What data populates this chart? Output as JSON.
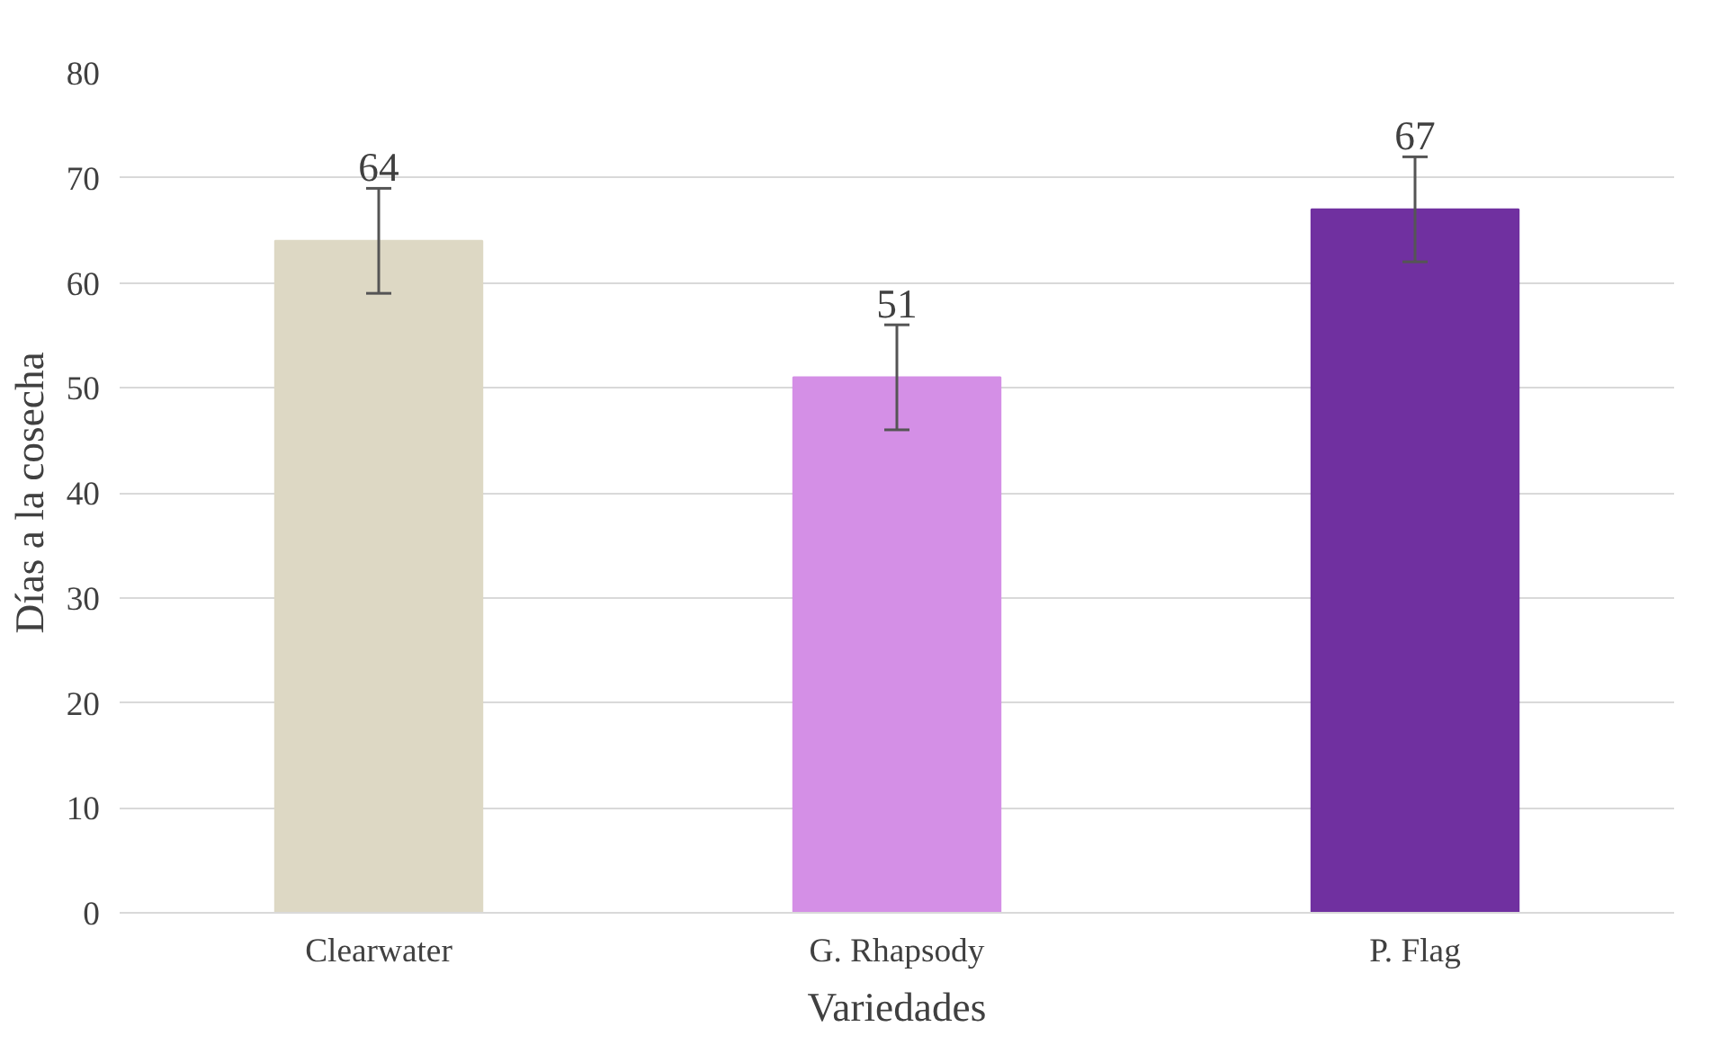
{
  "chart_data": {
    "type": "bar",
    "xlabel": "Variedades",
    "ylabel": "Días a la cosecha",
    "categories": [
      "Clearwater",
      "G. Rhapsody",
      "P. Flag"
    ],
    "values": [
      64,
      51,
      67
    ],
    "colors": [
      "#ddd8c4",
      "#d48fe6",
      "#7030a0"
    ],
    "errors": [
      5,
      5,
      5
    ],
    "data_labels": true,
    "ylim": [
      0,
      80
    ],
    "yticks": [
      0,
      10,
      20,
      30,
      40,
      50,
      60,
      70,
      80
    ],
    "grid": "y"
  }
}
